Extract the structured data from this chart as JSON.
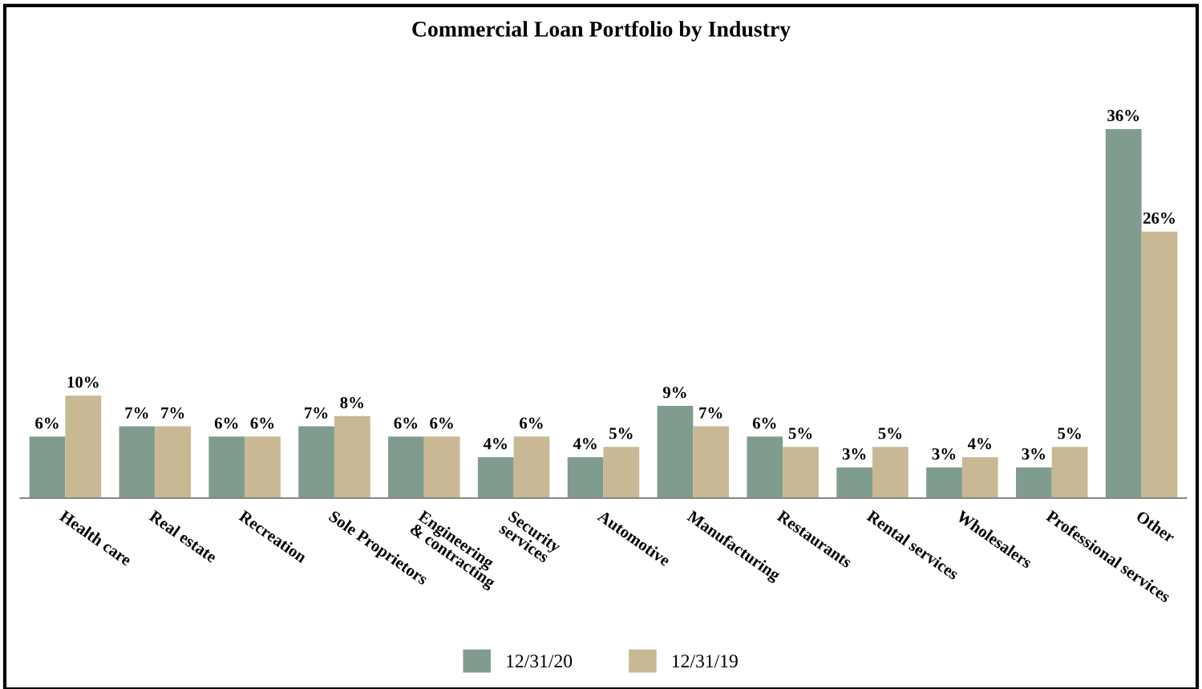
{
  "chart_data": {
    "type": "bar",
    "title": "Commercial Loan Portfolio by Industry",
    "categories": [
      "Health care",
      "Real estate",
      "Recreation",
      "Sole Proprietors",
      "Engineering\n& contracting",
      "Security\nservices",
      "Automotive",
      "Manufacturing",
      "Restaurants",
      "Rental services",
      "Wholesalers",
      "Professional services",
      "Other"
    ],
    "series": [
      {
        "name": "12/31/20",
        "color": "#7f9c8f",
        "values": [
          6,
          7,
          6,
          7,
          6,
          4,
          4,
          9,
          6,
          3,
          3,
          3,
          36
        ],
        "value_labels": [
          "6%",
          "7%",
          "6%",
          "7%",
          "6%",
          "4%",
          "4%",
          "9%",
          "6%",
          "3%",
          "3%",
          "3%",
          "36%"
        ]
      },
      {
        "name": "12/31/19",
        "color": "#c8b893",
        "values": [
          10,
          7,
          6,
          8,
          6,
          6,
          5,
          7,
          5,
          5,
          4,
          5,
          26
        ],
        "value_labels": [
          "10%",
          "7%",
          "6%",
          "8%",
          "6%",
          "6%",
          "5%",
          "7%",
          "5%",
          "5%",
          "4%",
          "5%",
          "26%"
        ]
      }
    ],
    "legend": "bottom",
    "grid": false
  }
}
